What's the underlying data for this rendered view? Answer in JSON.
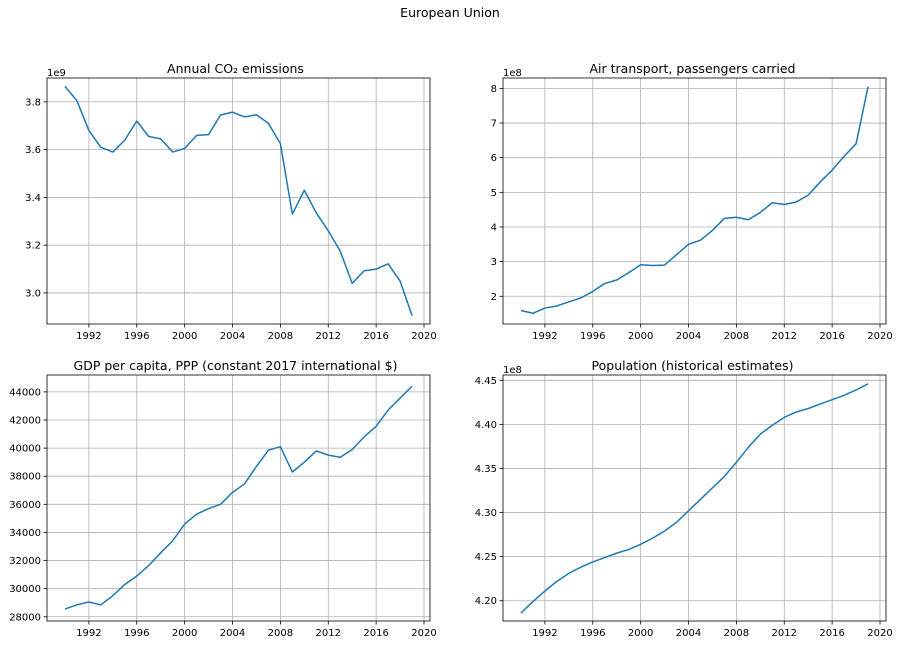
{
  "figure": {
    "title": "European Union"
  },
  "chart_data": [
    {
      "type": "line",
      "title": "Annual CO₂ emissions",
      "offset_label": "1e9",
      "xlabel": "",
      "ylabel": "",
      "grid": true,
      "xlim": [
        1988.5,
        2020.5
      ],
      "ylim": [
        2.87,
        3.9
      ],
      "xticks": [
        1992,
        1996,
        2000,
        2004,
        2008,
        2012,
        2016,
        2020
      ],
      "yticks": [
        3.0,
        3.2,
        3.4,
        3.6,
        3.8
      ],
      "ytick_labels": [
        "3.0",
        "3.2",
        "3.4",
        "3.6",
        "3.8"
      ],
      "x": [
        1990,
        1991,
        1992,
        1993,
        1994,
        1995,
        1996,
        1997,
        1998,
        1999,
        2000,
        2001,
        2002,
        2003,
        2004,
        2005,
        2006,
        2007,
        2008,
        2009,
        2010,
        2011,
        2012,
        2013,
        2014,
        2015,
        2016,
        2017,
        2018,
        2019
      ],
      "y": [
        3.865,
        3.805,
        3.68,
        3.61,
        3.59,
        3.64,
        3.72,
        3.655,
        3.645,
        3.59,
        3.605,
        3.66,
        3.663,
        3.745,
        3.757,
        3.737,
        3.746,
        3.71,
        3.625,
        3.33,
        3.43,
        3.335,
        3.26,
        3.175,
        3.04,
        3.093,
        3.1,
        3.122,
        3.05,
        2.905
      ]
    },
    {
      "type": "line",
      "title": "Air transport, passengers carried",
      "offset_label": "1e8",
      "xlabel": "",
      "ylabel": "",
      "grid": true,
      "xlim": [
        1988.5,
        2020.5
      ],
      "ylim": [
        1.2,
        8.3
      ],
      "xticks": [
        1992,
        1996,
        2000,
        2004,
        2008,
        2012,
        2016,
        2020
      ],
      "yticks": [
        2,
        3,
        4,
        5,
        6,
        7,
        8
      ],
      "ytick_labels": [
        "2",
        "3",
        "4",
        "5",
        "6",
        "7",
        "8"
      ],
      "x": [
        1990,
        1991,
        1992,
        1993,
        1994,
        1995,
        1996,
        1997,
        1998,
        1999,
        2000,
        2001,
        2002,
        2003,
        2004,
        2005,
        2006,
        2007,
        2008,
        2009,
        2010,
        2011,
        2012,
        2013,
        2014,
        2015,
        2016,
        2017,
        2018,
        2019
      ],
      "y": [
        1.59,
        1.51,
        1.66,
        1.72,
        1.84,
        1.95,
        2.14,
        2.37,
        2.47,
        2.68,
        2.91,
        2.89,
        2.9,
        3.2,
        3.5,
        3.62,
        3.9,
        4.25,
        4.28,
        4.21,
        4.42,
        4.7,
        4.65,
        4.72,
        4.92,
        5.3,
        5.64,
        6.04,
        6.4,
        8.05
      ]
    },
    {
      "type": "line",
      "title": "GDP per capita, PPP (constant 2017 international $)",
      "offset_label": "",
      "xlabel": "",
      "ylabel": "",
      "grid": true,
      "xlim": [
        1988.5,
        2020.5
      ],
      "ylim": [
        27700,
        45200
      ],
      "xticks": [
        1992,
        1996,
        2000,
        2004,
        2008,
        2012,
        2016,
        2020
      ],
      "yticks": [
        28000,
        30000,
        32000,
        34000,
        36000,
        38000,
        40000,
        42000,
        44000
      ],
      "ytick_labels": [
        "28000",
        "30000",
        "32000",
        "34000",
        "36000",
        "38000",
        "40000",
        "42000",
        "44000"
      ],
      "x": [
        1990,
        1991,
        1992,
        1993,
        1994,
        1995,
        1996,
        1997,
        1998,
        1999,
        2000,
        2001,
        2002,
        2003,
        2004,
        2005,
        2006,
        2007,
        2008,
        2009,
        2010,
        2011,
        2012,
        2013,
        2014,
        2015,
        2016,
        2017,
        2018,
        2019
      ],
      "y": [
        28550,
        28850,
        29050,
        28850,
        29500,
        30300,
        30900,
        31650,
        32550,
        33400,
        34600,
        35300,
        35700,
        36000,
        36850,
        37450,
        38700,
        39850,
        40100,
        38300,
        39000,
        39800,
        39500,
        39350,
        39900,
        40800,
        41550,
        42700,
        43550,
        44400
      ]
    },
    {
      "type": "line",
      "title": "Population (historical estimates)",
      "offset_label": "1e8",
      "xlabel": "",
      "ylabel": "",
      "grid": true,
      "xlim": [
        1988.5,
        2020.5
      ],
      "ylim": [
        4.177,
        4.456
      ],
      "xticks": [
        1992,
        1996,
        2000,
        2004,
        2008,
        2012,
        2016,
        2020
      ],
      "yticks": [
        4.2,
        4.25,
        4.3,
        4.35,
        4.4,
        4.45
      ],
      "ytick_labels": [
        "4.20",
        "4.25",
        "4.30",
        "4.35",
        "4.40",
        "4.45"
      ],
      "x": [
        1990,
        1991,
        1992,
        1993,
        1994,
        1995,
        1996,
        1997,
        1998,
        1999,
        2000,
        2001,
        2002,
        2003,
        2004,
        2005,
        2006,
        2007,
        2008,
        2009,
        2010,
        2011,
        2012,
        2013,
        2014,
        2015,
        2016,
        2017,
        2018,
        2019
      ],
      "y": [
        4.186,
        4.199,
        4.211,
        4.222,
        4.231,
        4.238,
        4.244,
        4.249,
        4.254,
        4.258,
        4.264,
        4.271,
        4.279,
        4.289,
        4.302,
        4.315,
        4.328,
        4.341,
        4.357,
        4.374,
        4.389,
        4.399,
        4.408,
        4.414,
        4.418,
        4.423,
        4.428,
        4.433,
        4.439,
        4.446
      ]
    }
  ]
}
